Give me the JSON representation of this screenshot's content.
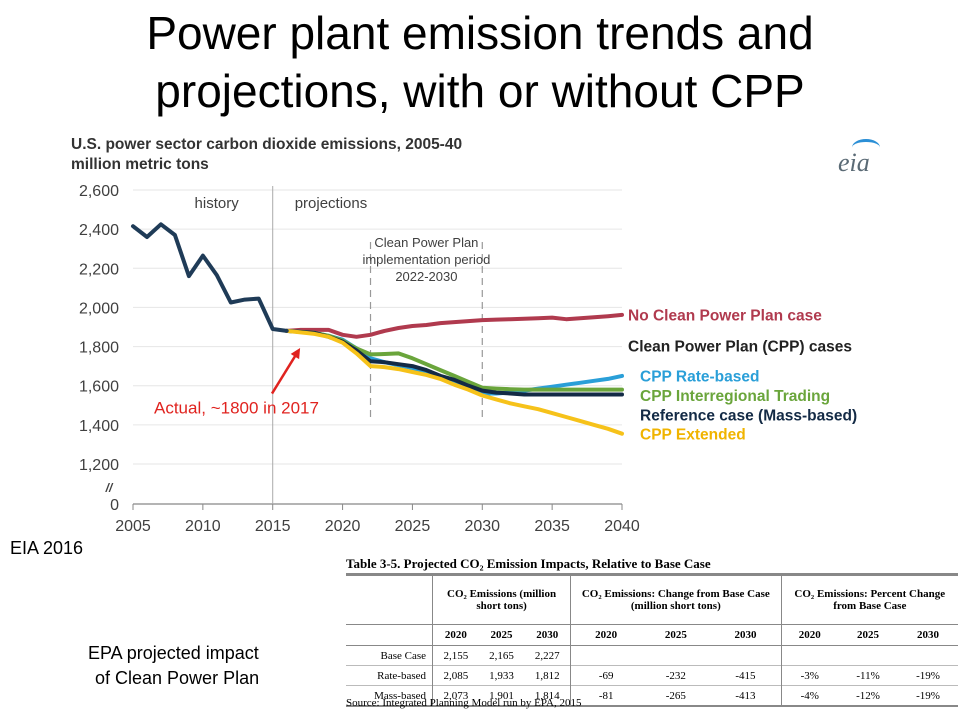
{
  "slide": {
    "title_line1": "Power plant emission trends and",
    "title_line2": "projections, with or without CPP",
    "caption_eia": "EIA 2016",
    "caption_epa_line1": "EPA projected impact",
    "caption_epa_line2": "of Clean Power Plan"
  },
  "chart_data": {
    "type": "line",
    "title": "U.S. power sector carbon dioxide emissions, 2005-40",
    "ylabel": "million metric tons",
    "logo": "eia",
    "xlim": [
      2005,
      2040
    ],
    "ylim": [
      1200,
      2600
    ],
    "xticks": [
      2005,
      2010,
      2015,
      2020,
      2025,
      2030,
      2035,
      2040
    ],
    "yticks": [
      1200,
      1400,
      1600,
      1800,
      2000,
      2200,
      2400,
      2600
    ],
    "ytick_labels": [
      "1,200",
      "1,400",
      "1,600",
      "1,800",
      "2,000",
      "2,200",
      "2,400",
      "2,600"
    ],
    "yzero_label": "0",
    "axis_break_label": "//",
    "region_labels": {
      "history": "history",
      "projections": "projections"
    },
    "cpp_period": {
      "line1": "Clean Power Plan",
      "line2": "implementation period",
      "line3": "2022-2030",
      "start": 2022,
      "end": 2030
    },
    "history_end": 2015,
    "annotation": "Actual, ~1800 in 2017",
    "group_label": "Clean Power Plan (CPP) cases",
    "series": [
      {
        "name": "History",
        "color": "#1f3b57",
        "x": [
          2005,
          2006,
          2007,
          2008,
          2009,
          2010,
          2011,
          2012,
          2013,
          2014,
          2015,
          2016
        ],
        "values": [
          2415,
          2360,
          2425,
          2370,
          2160,
          2265,
          2165,
          2025,
          2040,
          2045,
          1890,
          1880
        ]
      },
      {
        "name": "No Clean Power Plan case",
        "color": "#b03a4e",
        "x": [
          2016,
          2017,
          2018,
          2019,
          2020,
          2021,
          2022,
          2023,
          2024,
          2025,
          2026,
          2027,
          2028,
          2029,
          2030,
          2031,
          2032,
          2033,
          2034,
          2035,
          2036,
          2037,
          2038,
          2039,
          2040
        ],
        "values": [
          1880,
          1885,
          1885,
          1885,
          1860,
          1850,
          1860,
          1880,
          1895,
          1905,
          1910,
          1920,
          1925,
          1930,
          1935,
          1938,
          1940,
          1942,
          1945,
          1948,
          1940,
          1945,
          1950,
          1955,
          1962
        ]
      },
      {
        "name": "CPP Rate-based",
        "color": "#2a9fd8",
        "x": [
          2016,
          2018,
          2019,
          2020,
          2021,
          2022,
          2023,
          2024,
          2025,
          2026,
          2027,
          2028,
          2029,
          2030,
          2031,
          2032,
          2033,
          2034,
          2035,
          2036,
          2037,
          2038,
          2039,
          2040
        ],
        "values": [
          1880,
          1870,
          1855,
          1835,
          1790,
          1740,
          1720,
          1705,
          1690,
          1670,
          1640,
          1610,
          1590,
          1560,
          1560,
          1565,
          1575,
          1585,
          1595,
          1605,
          1615,
          1625,
          1635,
          1650
        ]
      },
      {
        "name": "CPP Interregional Trading",
        "color": "#6aa53b",
        "x": [
          2016,
          2018,
          2019,
          2020,
          2021,
          2022,
          2023,
          2024,
          2025,
          2026,
          2027,
          2028,
          2029,
          2030,
          2031,
          2032,
          2033,
          2034,
          2035,
          2036,
          2037,
          2038,
          2039,
          2040
        ],
        "values": [
          1880,
          1870,
          1855,
          1830,
          1790,
          1760,
          1762,
          1765,
          1740,
          1710,
          1680,
          1650,
          1620,
          1590,
          1585,
          1582,
          1580,
          1580,
          1580,
          1580,
          1580,
          1580,
          1580,
          1580
        ]
      },
      {
        "name": "Reference case (Mass-based)",
        "color": "#132a45",
        "x": [
          2016,
          2018,
          2019,
          2020,
          2021,
          2022,
          2023,
          2024,
          2025,
          2026,
          2027,
          2028,
          2029,
          2030,
          2031,
          2032,
          2033,
          2034,
          2035,
          2036,
          2037,
          2038,
          2039,
          2040
        ],
        "values": [
          1880,
          1870,
          1850,
          1825,
          1780,
          1725,
          1720,
          1710,
          1700,
          1680,
          1650,
          1630,
          1600,
          1575,
          1565,
          1560,
          1555,
          1555,
          1555,
          1555,
          1555,
          1555,
          1555,
          1555
        ]
      },
      {
        "name": "CPP Extended",
        "color": "#f6c21a",
        "x": [
          2016,
          2018,
          2019,
          2020,
          2021,
          2022,
          2023,
          2024,
          2025,
          2026,
          2027,
          2028,
          2029,
          2030,
          2031,
          2032,
          2033,
          2034,
          2035,
          2036,
          2037,
          2038,
          2039,
          2040
        ],
        "values": [
          1880,
          1865,
          1850,
          1820,
          1765,
          1700,
          1695,
          1685,
          1670,
          1655,
          1635,
          1605,
          1580,
          1550,
          1530,
          1510,
          1495,
          1480,
          1460,
          1440,
          1420,
          1400,
          1380,
          1355
        ]
      }
    ]
  },
  "table": {
    "title": "Table 3-5. Projected CO₂ Emission Impacts, Relative to Base Case",
    "groups": [
      "CO₂ Emissions (million short tons)",
      "CO₂ Emissions: Change from Base Case (million short tons)",
      "CO₂ Emissions: Percent Change from Base Case"
    ],
    "years": [
      "2020",
      "2025",
      "2030"
    ],
    "rows": [
      {
        "label": "Base Case",
        "cells": [
          "2,155",
          "2,165",
          "2,227",
          "",
          "",
          "",
          "",
          "",
          ""
        ]
      },
      {
        "label": "Rate-based",
        "cells": [
          "2,085",
          "1,933",
          "1,812",
          "-69",
          "-232",
          "-415",
          "-3%",
          "-11%",
          "-19%"
        ]
      },
      {
        "label": "Mass-based",
        "cells": [
          "2,073",
          "1,901",
          "1,814",
          "-81",
          "-265",
          "-413",
          "-4%",
          "-12%",
          "-19%"
        ]
      }
    ],
    "source": "Source: Integrated Planning Model run by EPA, 2015"
  },
  "colors": {
    "axis": "#888888",
    "tick_text": "#404040",
    "annotation": "#e0231f",
    "period_dash": "#999999",
    "group_label": "#222222"
  }
}
